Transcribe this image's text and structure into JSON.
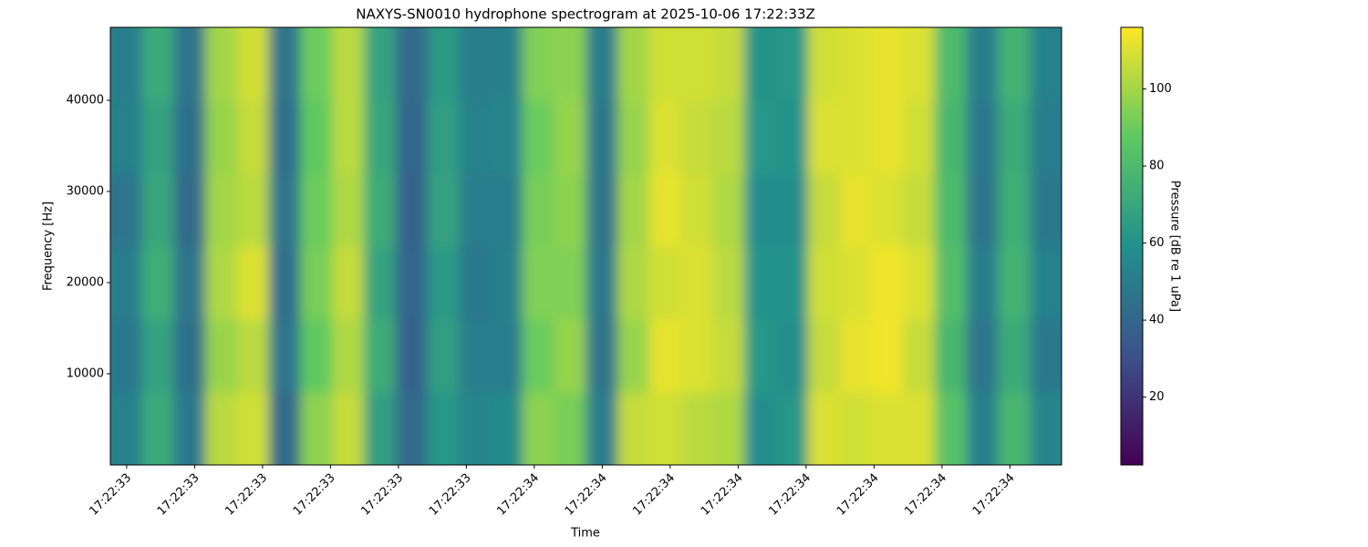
{
  "chart_data": {
    "type": "spectrogram",
    "title": "NAXYS-SN0010 hydrophone spectrogram at 2025-10-06 17:22:33Z",
    "xlabel": "Time",
    "ylabel": "Frequency [Hz]",
    "colorbar_label": "Pressure [dB re 1 uPa]",
    "xlim": [
      33.22,
      34.97
    ],
    "xticks": [
      {
        "value": 33.25,
        "label": "17:22:33"
      },
      {
        "value": 33.375,
        "label": "17:22:33"
      },
      {
        "value": 33.5,
        "label": "17:22:33"
      },
      {
        "value": 33.625,
        "label": "17:22:33"
      },
      {
        "value": 33.75,
        "label": "17:22:33"
      },
      {
        "value": 33.875,
        "label": "17:22:33"
      },
      {
        "value": 34.0,
        "label": "17:22:34"
      },
      {
        "value": 34.125,
        "label": "17:22:34"
      },
      {
        "value": 34.25,
        "label": "17:22:34"
      },
      {
        "value": 34.375,
        "label": "17:22:34"
      },
      {
        "value": 34.5,
        "label": "17:22:34"
      },
      {
        "value": 34.625,
        "label": "17:22:34"
      },
      {
        "value": 34.75,
        "label": "17:22:34"
      },
      {
        "value": 34.875,
        "label": "17:22:34"
      }
    ],
    "ylim": [
      0,
      48000
    ],
    "yticks": [
      10000,
      20000,
      30000,
      40000
    ],
    "clim": [
      2.4,
      116
    ],
    "cticks": [
      20,
      40,
      60,
      80,
      100
    ],
    "colormap": [
      "#440154",
      "#3b528b",
      "#21918c",
      "#5ec962",
      "#fde725"
    ],
    "z": [
      [
        52,
        72,
        48,
        104,
        108,
        42,
        96,
        106,
        66,
        42,
        62,
        54,
        56,
        96,
        92,
        50,
        106,
        108,
        104,
        102,
        58,
        62,
        110,
        108,
        110,
        110,
        84,
        52,
        78,
        54
      ],
      [
        48,
        68,
        44,
        98,
        104,
        46,
        88,
        102,
        72,
        38,
        66,
        50,
        50,
        90,
        98,
        46,
        98,
        112,
        110,
        106,
        62,
        58,
        106,
        112,
        114,
        106,
        78,
        46,
        72,
        48
      ],
      [
        50,
        74,
        46,
        102,
        110,
        44,
        92,
        106,
        68,
        40,
        64,
        48,
        52,
        94,
        94,
        48,
        102,
        108,
        110,
        104,
        60,
        60,
        108,
        110,
        114,
        110,
        82,
        50,
        76,
        52
      ],
      [
        46,
        70,
        42,
        100,
        104,
        46,
        90,
        102,
        72,
        38,
        68,
        50,
        50,
        92,
        96,
        46,
        100,
        112,
        108,
        102,
        58,
        58,
        106,
        112,
        110,
        106,
        80,
        46,
        74,
        48
      ],
      [
        52,
        68,
        44,
        98,
        106,
        44,
        88,
        104,
        70,
        40,
        66,
        52,
        54,
        90,
        98,
        48,
        98,
        110,
        106,
        104,
        62,
        60,
        110,
        110,
        112,
        108,
        78,
        48,
        72,
        50
      ],
      [
        50,
        72,
        46,
        100,
        108,
        46,
        90,
        104,
        68,
        42,
        64,
        50,
        52,
        94,
        96,
        50,
        100,
        108,
        108,
        106,
        60,
        62,
        108,
        110,
        112,
        110,
        80,
        50,
        76,
        52
      ]
    ]
  }
}
